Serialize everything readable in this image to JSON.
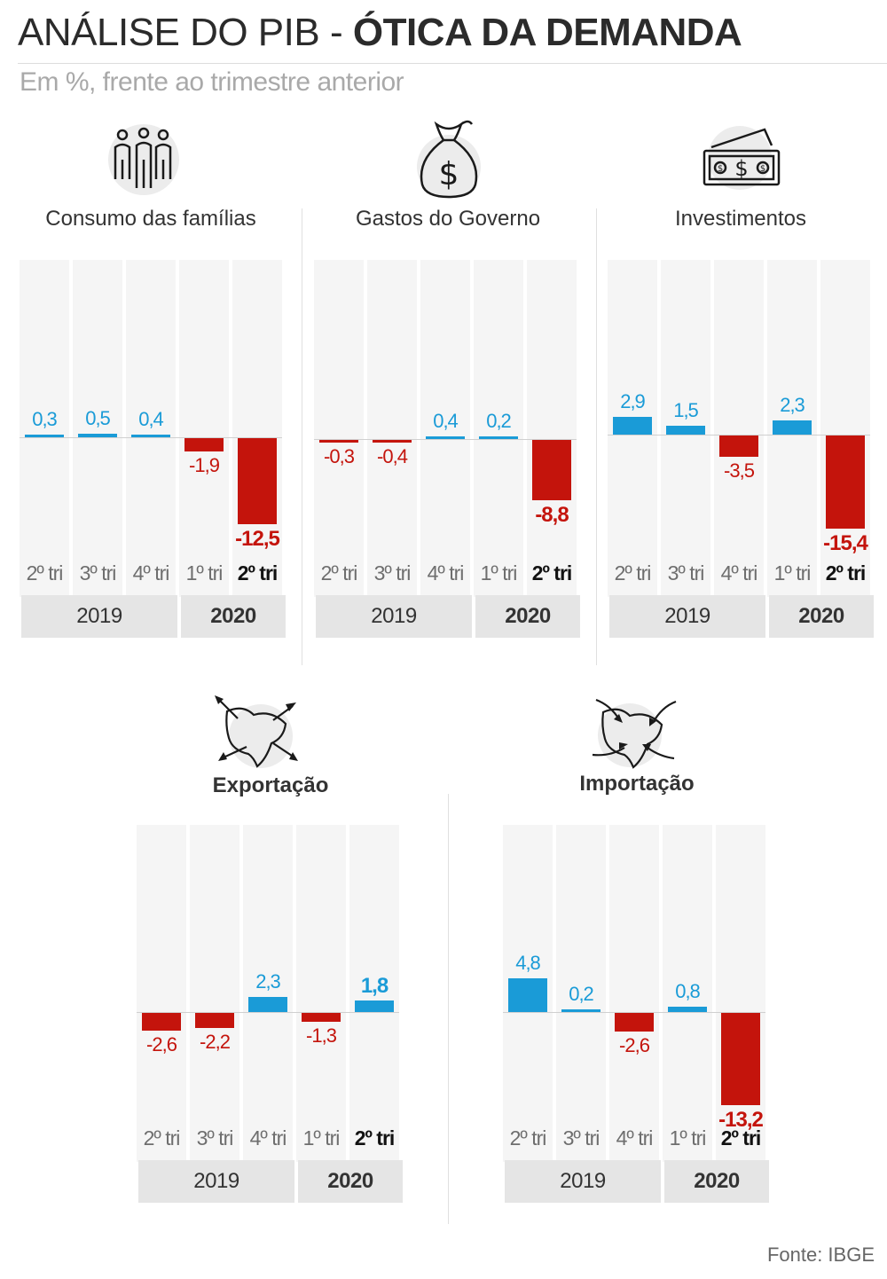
{
  "title": {
    "part1": "ANÁLISE DO PIB - ",
    "part2": "ÓTICA DA DEMANDA"
  },
  "subtitle": "Em %, frente ao trimestre anterior",
  "source": "Fonte: IBGE",
  "colors": {
    "positive": "#1a9bd7",
    "negative": "#c4140c",
    "column_bg": "#f5f5f5",
    "year_bg": "#e5e5e5"
  },
  "chart_data": [
    {
      "type": "bar",
      "title": "Consumo das famílias",
      "icon": "people-icon",
      "categories": [
        "2º tri",
        "3º tri",
        "4º tri",
        "1º tri",
        "2º tri"
      ],
      "values": [
        0.3,
        0.5,
        0.4,
        -1.9,
        -12.5
      ],
      "value_labels": [
        "0,3",
        "0,5",
        "0,4",
        "-1,9",
        "-12,5"
      ],
      "years": [
        "2019",
        "2020"
      ],
      "highlight_index": 4
    },
    {
      "type": "bar",
      "title": "Gastos do Governo",
      "icon": "money-bag-icon",
      "categories": [
        "2º tri",
        "3º tri",
        "4º tri",
        "1º tri",
        "2º tri"
      ],
      "values": [
        -0.3,
        -0.4,
        0.4,
        0.2,
        -8.8
      ],
      "value_labels": [
        "-0,3",
        "-0,4",
        "0,4",
        "0,2",
        "-8,8"
      ],
      "years": [
        "2019",
        "2020"
      ],
      "highlight_index": 4
    },
    {
      "type": "bar",
      "title": "Investimentos",
      "icon": "banknotes-icon",
      "categories": [
        "2º tri",
        "3º tri",
        "4º tri",
        "1º tri",
        "2º tri"
      ],
      "values": [
        2.9,
        1.5,
        -3.5,
        2.3,
        -15.4
      ],
      "value_labels": [
        "2,9",
        "1,5",
        "-3,5",
        "2,3",
        "-15,4"
      ],
      "years": [
        "2019",
        "2020"
      ],
      "highlight_index": 4
    },
    {
      "type": "bar",
      "title": "Exportação",
      "icon": "export-map-icon",
      "categories": [
        "2º tri",
        "3º tri",
        "4º tri",
        "1º tri",
        "2º tri"
      ],
      "values": [
        -2.6,
        -2.2,
        2.3,
        -1.3,
        1.8
      ],
      "value_labels": [
        "-2,6",
        "-2,2",
        "2,3",
        "-1,3",
        "1,8"
      ],
      "years": [
        "2019",
        "2020"
      ],
      "highlight_index": 4
    },
    {
      "type": "bar",
      "title": "Importação",
      "icon": "import-map-icon",
      "categories": [
        "2º tri",
        "3º tri",
        "4º tri",
        "1º tri",
        "2º tri"
      ],
      "values": [
        4.8,
        0.2,
        -2.6,
        0.8,
        -13.2
      ],
      "value_labels": [
        "4,8",
        "0,2",
        "-2,6",
        "0,8",
        "-13,2"
      ],
      "years": [
        "2019",
        "2020"
      ],
      "highlight_index": 4
    }
  ]
}
